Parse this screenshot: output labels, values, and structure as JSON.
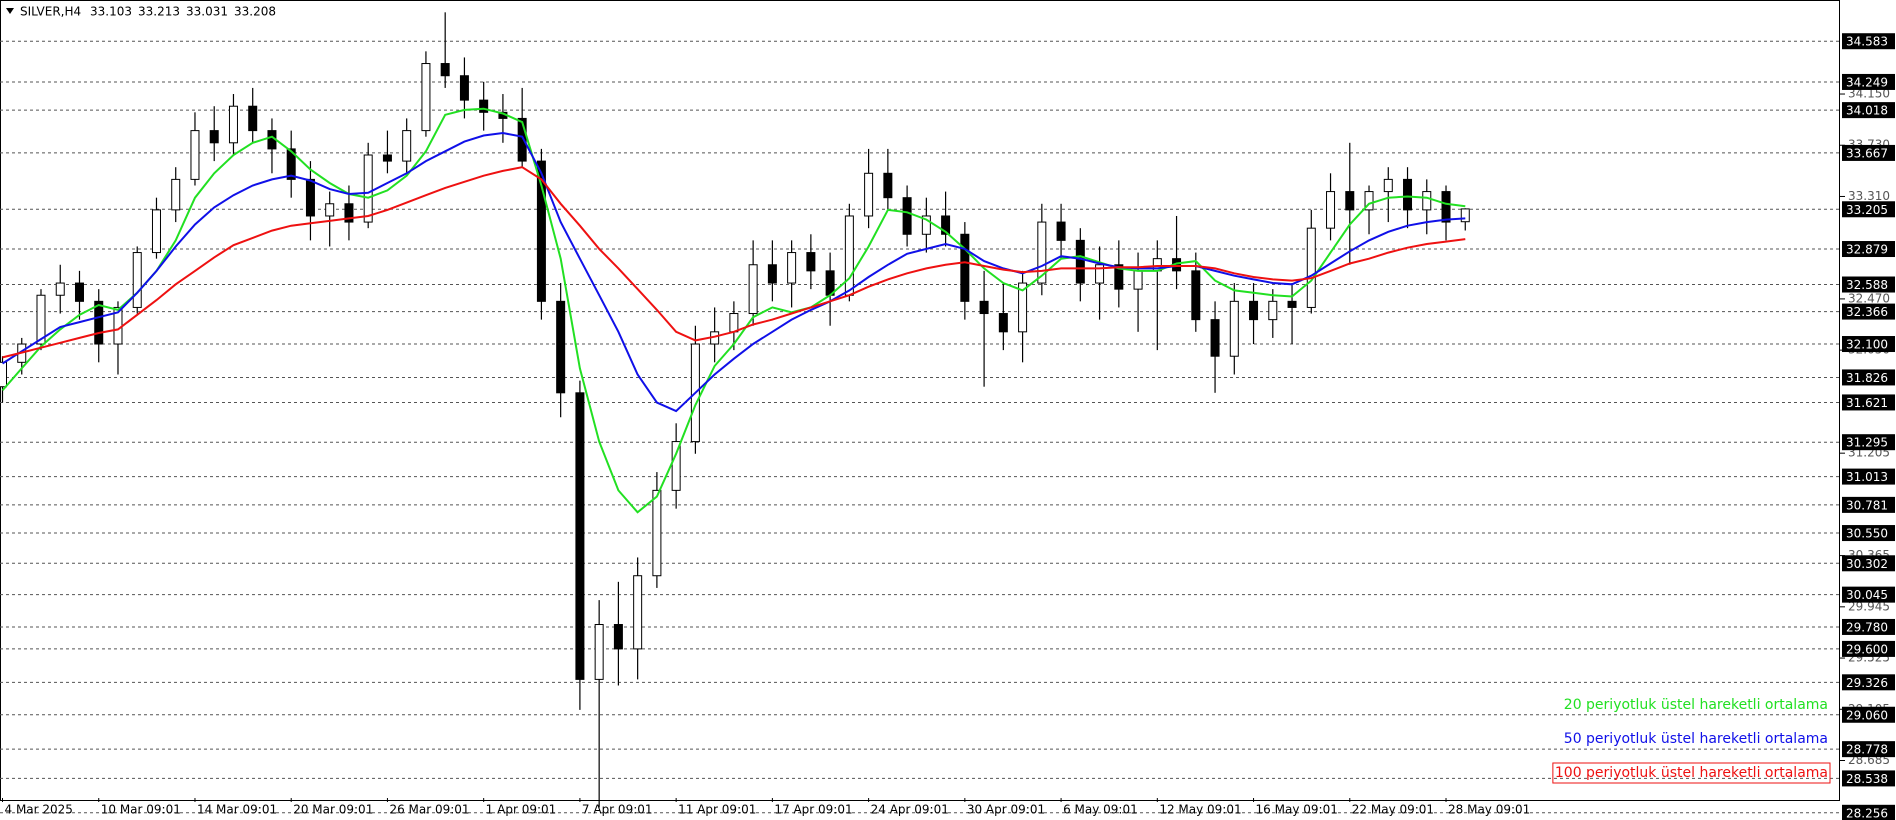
{
  "chart_data": {
    "type": "candlestick",
    "symbol": "SILVER,H4",
    "quote": [
      33.103,
      33.213,
      33.031,
      33.208
    ],
    "xlim": [
      -0.13,
      95.47
    ],
    "ylim": [
      28.197,
      34.921
    ],
    "xticks": [
      {
        "value": 0,
        "label": "4 Mar 2025"
      },
      {
        "value": 5,
        "label": "10 Mar 09:01"
      },
      {
        "value": 10,
        "label": "14 Mar 09:01"
      },
      {
        "value": 15,
        "label": "20 Mar 09:01"
      },
      {
        "value": 20,
        "label": "26 Mar 09:01"
      },
      {
        "value": 25,
        "label": "1 Apr 09:01"
      },
      {
        "value": 30,
        "label": "7 Apr 09:01"
      },
      {
        "value": 35,
        "label": "11 Apr 09:01"
      },
      {
        "value": 40,
        "label": "17 Apr 09:01"
      },
      {
        "value": 45,
        "label": "24 Apr 09:01"
      },
      {
        "value": 50,
        "label": "30 Apr 09:01"
      },
      {
        "value": 55,
        "label": "6 May 09:01"
      },
      {
        "value": 60,
        "label": "12 May 09:01"
      },
      {
        "value": 65,
        "label": "16 May 09:01"
      },
      {
        "value": 70,
        "label": "22 May 09:01"
      },
      {
        "value": 75,
        "label": "28 May 09:01"
      }
    ],
    "yticks": [
      {
        "value": 34.15,
        "label": "34.150"
      },
      {
        "value": 33.73,
        "label": "33.730"
      },
      {
        "value": 33.31,
        "label": "33.310"
      },
      {
        "value": 32.47,
        "label": "32.470"
      },
      {
        "value": 32.05,
        "label": "32.050"
      },
      {
        "value": 31.205,
        "label": "31.205"
      },
      {
        "value": 30.365,
        "label": "30.365"
      },
      {
        "value": 29.945,
        "label": "29.945"
      },
      {
        "value": 29.525,
        "label": "29.525"
      },
      {
        "value": 29.105,
        "label": "29.105"
      },
      {
        "value": 28.685,
        "label": "28.685"
      }
    ],
    "levels": [
      {
        "value": 34.583,
        "label": "34.583"
      },
      {
        "value": 34.249,
        "label": "34.249"
      },
      {
        "value": 34.018,
        "label": "34.018"
      },
      {
        "value": 33.667,
        "label": "33.667"
      },
      {
        "value": 33.205,
        "label": "33.205"
      },
      {
        "value": 32.879,
        "label": "32.879"
      },
      {
        "value": 32.588,
        "label": "32.588"
      },
      {
        "value": 32.366,
        "label": "32.366"
      },
      {
        "value": 32.1,
        "label": "32.100"
      },
      {
        "value": 31.826,
        "label": "31.826"
      },
      {
        "value": 31.621,
        "label": "31.621"
      },
      {
        "value": 31.295,
        "label": "31.295"
      },
      {
        "value": 31.013,
        "label": "31.013"
      },
      {
        "value": 30.781,
        "label": "30.781"
      },
      {
        "value": 30.55,
        "label": "30.550"
      },
      {
        "value": 30.302,
        "label": "30.302"
      },
      {
        "value": 30.045,
        "label": "30.045"
      },
      {
        "value": 29.78,
        "label": "29.780"
      },
      {
        "value": 29.6,
        "label": "29.600"
      },
      {
        "value": 29.326,
        "label": "29.326"
      },
      {
        "value": 29.06,
        "label": "29.060"
      },
      {
        "value": 28.778,
        "label": "28.778"
      },
      {
        "value": 28.538,
        "label": "28.538"
      },
      {
        "value": 28.256,
        "label": "28.256"
      }
    ],
    "open": [
      31.75,
      31.95,
      32.1,
      32.5,
      32.6,
      32.45,
      32.1,
      32.4,
      32.85,
      33.2,
      33.45,
      33.85,
      33.75,
      34.05,
      33.85,
      33.7,
      33.45,
      33.15,
      33.25,
      33.1,
      33.65,
      33.6,
      33.85,
      34.4,
      34.3,
      34.1,
      34.0,
      33.95,
      33.6,
      32.45,
      31.7,
      29.35,
      29.8,
      29.6,
      30.2,
      30.9,
      31.3,
      32.1,
      32.2,
      32.35,
      32.75,
      32.6,
      32.85,
      32.7,
      32.5,
      33.15,
      33.5,
      33.3,
      33.0,
      33.15,
      33.0,
      32.45,
      32.35,
      32.2,
      32.6,
      33.1,
      32.95,
      32.6,
      32.75,
      32.55,
      32.7,
      32.8,
      32.7,
      32.3,
      32.0,
      32.45,
      32.3,
      32.45,
      32.4,
      33.05,
      33.35,
      33.2,
      33.35,
      33.45,
      33.2,
      33.35,
      33.103
    ],
    "high": [
      32.0,
      32.15,
      32.55,
      32.75,
      32.7,
      32.55,
      32.45,
      32.9,
      33.3,
      33.55,
      34.0,
      34.05,
      34.15,
      34.2,
      33.95,
      33.85,
      33.6,
      33.35,
      33.4,
      33.75,
      33.85,
      33.95,
      34.5,
      34.82,
      34.45,
      34.25,
      34.15,
      34.2,
      33.7,
      32.6,
      31.8,
      30.0,
      30.15,
      30.35,
      31.05,
      31.45,
      32.25,
      32.4,
      32.45,
      32.95,
      32.95,
      32.95,
      33.0,
      32.85,
      33.25,
      33.7,
      33.7,
      33.4,
      33.3,
      33.35,
      33.1,
      32.7,
      32.6,
      32.7,
      33.25,
      33.25,
      33.05,
      32.9,
      32.95,
      32.85,
      32.95,
      33.15,
      32.85,
      32.45,
      32.6,
      32.6,
      32.55,
      32.6,
      33.2,
      33.5,
      33.75,
      33.4,
      33.55,
      33.55,
      33.45,
      33.4,
      33.213
    ],
    "low": [
      31.62,
      31.85,
      32.05,
      32.35,
      32.3,
      31.95,
      31.85,
      32.35,
      32.8,
      33.1,
      33.4,
      33.6,
      33.65,
      33.75,
      33.5,
      33.3,
      32.95,
      32.9,
      32.95,
      33.05,
      33.5,
      33.5,
      33.8,
      34.2,
      33.95,
      33.85,
      33.75,
      33.55,
      32.3,
      31.5,
      29.1,
      28.3,
      29.3,
      29.35,
      30.1,
      30.75,
      31.2,
      31.95,
      32.05,
      32.25,
      32.45,
      32.4,
      32.55,
      32.25,
      32.45,
      33.05,
      33.2,
      32.9,
      32.85,
      32.9,
      32.3,
      31.75,
      32.05,
      31.95,
      32.5,
      32.8,
      32.45,
      32.3,
      32.4,
      32.2,
      32.05,
      32.55,
      32.2,
      31.7,
      31.85,
      32.1,
      32.15,
      32.1,
      32.35,
      32.95,
      32.75,
      33.0,
      33.1,
      33.05,
      33.0,
      32.95,
      33.031
    ],
    "close": [
      31.95,
      32.1,
      32.5,
      32.6,
      32.45,
      32.1,
      32.4,
      32.85,
      33.2,
      33.45,
      33.85,
      33.75,
      34.05,
      33.85,
      33.7,
      33.45,
      33.15,
      33.25,
      33.1,
      33.65,
      33.6,
      33.85,
      34.4,
      34.3,
      34.1,
      34.0,
      33.95,
      33.6,
      32.45,
      31.7,
      29.35,
      29.8,
      29.6,
      30.2,
      30.9,
      31.3,
      32.1,
      32.2,
      32.35,
      32.75,
      32.6,
      32.85,
      32.7,
      32.5,
      33.15,
      33.5,
      33.3,
      33.0,
      33.15,
      33.0,
      32.45,
      32.35,
      32.2,
      32.6,
      33.1,
      32.95,
      32.6,
      32.75,
      32.55,
      32.7,
      32.8,
      32.7,
      32.3,
      32.0,
      32.45,
      32.3,
      32.45,
      32.4,
      33.05,
      33.35,
      33.2,
      33.35,
      33.45,
      33.2,
      33.35,
      33.1,
      33.208
    ],
    "series": [
      {
        "name": "20 periyotluk üstel hareketli ortalama",
        "color": "#22e022",
        "values": [
          31.72,
          31.9,
          32.08,
          32.22,
          32.34,
          32.42,
          32.38,
          32.52,
          32.7,
          32.95,
          33.3,
          33.5,
          33.65,
          33.75,
          33.8,
          33.68,
          33.53,
          33.42,
          33.33,
          33.3,
          33.36,
          33.48,
          33.68,
          33.98,
          34.02,
          34.03,
          33.99,
          33.92,
          33.4,
          32.8,
          31.9,
          31.3,
          30.9,
          30.72,
          30.85,
          31.2,
          31.6,
          31.92,
          32.1,
          32.32,
          32.4,
          32.36,
          32.4,
          32.5,
          32.64,
          32.9,
          33.2,
          33.18,
          33.12,
          33.02,
          32.88,
          32.72,
          32.6,
          32.54,
          32.66,
          32.8,
          32.82,
          32.77,
          32.72,
          32.7,
          32.7,
          32.76,
          32.78,
          32.62,
          32.54,
          32.52,
          32.5,
          32.49,
          32.62,
          32.85,
          33.08,
          33.25,
          33.3,
          33.31,
          33.3,
          33.25,
          33.23
        ]
      },
      {
        "name": "50 periyotluk üstel hareketli ortalama",
        "color": "#1010e8",
        "values": [
          31.94,
          32.04,
          32.14,
          32.24,
          32.28,
          32.32,
          32.36,
          32.52,
          32.7,
          32.9,
          33.08,
          33.22,
          33.32,
          33.4,
          33.45,
          33.48,
          33.44,
          33.37,
          33.33,
          33.34,
          33.42,
          33.5,
          33.6,
          33.68,
          33.76,
          33.81,
          33.83,
          33.8,
          33.5,
          33.1,
          32.8,
          32.5,
          32.2,
          31.85,
          31.62,
          31.55,
          31.7,
          31.85,
          31.98,
          32.1,
          32.2,
          32.3,
          32.38,
          32.45,
          32.54,
          32.65,
          32.75,
          32.84,
          32.88,
          32.92,
          32.88,
          32.78,
          32.72,
          32.68,
          32.74,
          32.82,
          32.8,
          32.76,
          32.73,
          32.72,
          32.72,
          32.74,
          32.74,
          32.7,
          32.66,
          32.63,
          32.6,
          32.59,
          32.66,
          32.76,
          32.86,
          32.95,
          33.02,
          33.07,
          33.1,
          33.12,
          33.13
        ]
      },
      {
        "name": "100 periyotluk üstel hareketli ortalama",
        "color": "#ee1111",
        "values": [
          31.99,
          32.03,
          32.07,
          32.11,
          32.15,
          32.19,
          32.22,
          32.34,
          32.46,
          32.59,
          32.7,
          32.81,
          32.91,
          32.97,
          33.03,
          33.07,
          33.09,
          33.11,
          33.13,
          33.15,
          33.2,
          33.26,
          33.32,
          33.38,
          33.43,
          33.48,
          33.52,
          33.55,
          33.45,
          33.25,
          33.07,
          32.88,
          32.72,
          32.55,
          32.38,
          32.2,
          32.13,
          32.16,
          32.2,
          32.26,
          32.3,
          32.35,
          32.4,
          32.45,
          32.5,
          32.57,
          32.63,
          32.68,
          32.72,
          32.75,
          32.77,
          32.74,
          32.71,
          32.69,
          32.7,
          32.72,
          32.72,
          32.72,
          32.73,
          32.73,
          32.74,
          32.74,
          32.74,
          32.72,
          32.68,
          32.65,
          32.63,
          32.62,
          32.64,
          32.7,
          32.76,
          32.8,
          32.85,
          32.89,
          32.92,
          32.94,
          32.96
        ]
      }
    ]
  }
}
